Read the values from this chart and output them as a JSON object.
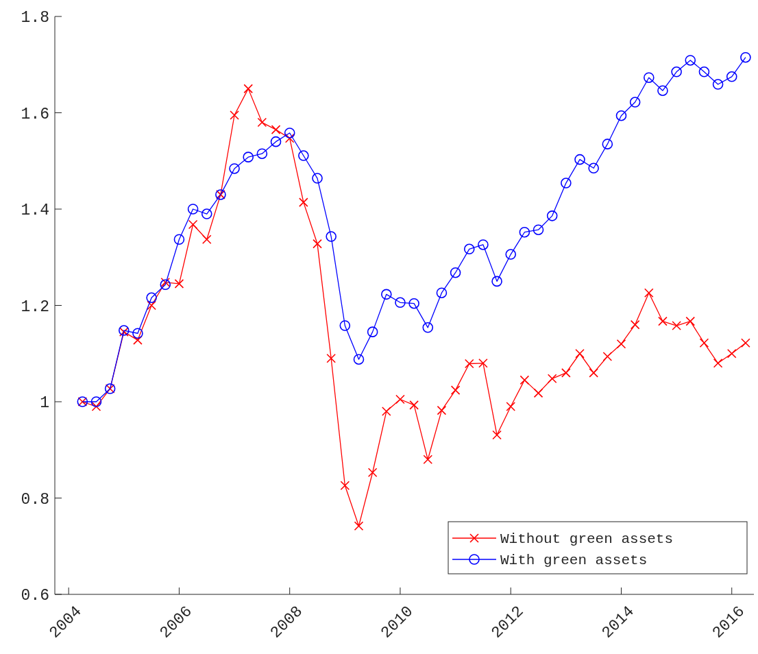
{
  "chart_data": {
    "type": "line",
    "x": [
      2004.25,
      2004.5,
      2004.75,
      2005,
      2005.25,
      2005.5,
      2005.75,
      2006,
      2006.25,
      2006.5,
      2006.75,
      2007,
      2007.25,
      2007.5,
      2007.75,
      2008,
      2008.25,
      2008.5,
      2008.75,
      2009,
      2009.25,
      2009.5,
      2009.75,
      2010,
      2010.25,
      2010.5,
      2010.75,
      2011,
      2011.25,
      2011.5,
      2011.75,
      2012,
      2012.25,
      2012.5,
      2012.75,
      2013,
      2013.25,
      2013.5,
      2013.75,
      2014,
      2014.25,
      2014.5,
      2014.75,
      2015,
      2015.25,
      2015.5,
      2015.75,
      2016,
      2016.25
    ],
    "series": [
      {
        "name": "Without green assets",
        "color": "#ff0000",
        "marker": "cross",
        "values": [
          1.0,
          0.99,
          1.027,
          1.145,
          1.128,
          1.2,
          1.248,
          1.245,
          1.368,
          1.337,
          1.43,
          1.595,
          1.65,
          1.58,
          1.565,
          1.547,
          1.414,
          1.328,
          1.09,
          0.826,
          0.742,
          0.853,
          0.98,
          1.005,
          0.993,
          0.88,
          0.982,
          1.024,
          1.079,
          1.08,
          0.931,
          0.99,
          1.045,
          1.018,
          1.048,
          1.06,
          1.1,
          1.06,
          1.094,
          1.12,
          1.16,
          1.226,
          1.167,
          1.158,
          1.167,
          1.122,
          1.08,
          1.1,
          1.122
        ]
      },
      {
        "name": "With green assets",
        "color": "#0000ff",
        "marker": "circle",
        "values": [
          1.0,
          1.0,
          1.027,
          1.148,
          1.142,
          1.216,
          1.243,
          1.337,
          1.4,
          1.39,
          1.43,
          1.484,
          1.508,
          1.515,
          1.54,
          1.558,
          1.511,
          1.464,
          1.343,
          1.158,
          1.088,
          1.145,
          1.223,
          1.206,
          1.204,
          1.154,
          1.226,
          1.268,
          1.317,
          1.326,
          1.25,
          1.306,
          1.352,
          1.357,
          1.386,
          1.454,
          1.503,
          1.485,
          1.535,
          1.594,
          1.622,
          1.673,
          1.646,
          1.685,
          1.709,
          1.685,
          1.659,
          1.675,
          1.715
        ]
      }
    ],
    "xlim": [
      2003.75,
      2016.4
    ],
    "xticks": [
      2004,
      2006,
      2008,
      2010,
      2012,
      2014,
      2016
    ],
    "ylim": [
      0.6,
      1.8
    ],
    "yticks": [
      0.6,
      0.8,
      1,
      1.2,
      1.4,
      1.6,
      1.8
    ],
    "grid": false,
    "legend": "bottom right",
    "line_style": "solid"
  }
}
